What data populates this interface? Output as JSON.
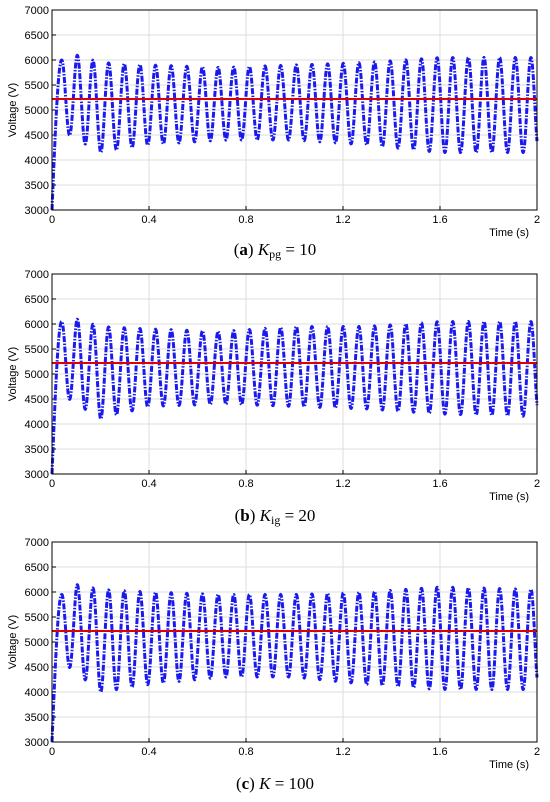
{
  "chart_data": [
    {
      "type": "line",
      "panel_label": "a",
      "caption_symbol": "K",
      "caption_sub": "pg",
      "caption_value": " = 10",
      "xlabel": "Time (s)",
      "ylabel": "Voltage (V)",
      "xlim": [
        0,
        2
      ],
      "ylim": [
        3000,
        7000
      ],
      "xticks": [
        "0",
        "0.4",
        "0.8",
        "1.2",
        "1.6",
        "2"
      ],
      "yticks": [
        "3000",
        "3500",
        "4000",
        "4500",
        "5000",
        "5500",
        "6000",
        "6500",
        "7000"
      ],
      "grid": true,
      "series": [
        {
          "color": "#1a1aee",
          "style": "dash-dot",
          "waveform": {
            "start_value": 3000,
            "rise_end_time": 0.04,
            "period_s": 0.0645,
            "max_points": [
              [
                0.04,
                6000
              ],
              [
                0.1,
                6100
              ],
              [
                0.2,
                5950
              ],
              [
                0.4,
                5900
              ],
              [
                0.7,
                5850
              ],
              [
                1.0,
                5900
              ],
              [
                1.3,
                5950
              ],
              [
                1.6,
                6050
              ],
              [
                2.0,
                6050
              ]
            ],
            "min_points": [
              [
                0.07,
                4500
              ],
              [
                0.2,
                4150
              ],
              [
                0.4,
                4300
              ],
              [
                0.7,
                4400
              ],
              [
                1.0,
                4400
              ],
              [
                1.3,
                4300
              ],
              [
                1.6,
                4150
              ],
              [
                2.0,
                4150
              ]
            ]
          }
        },
        {
          "color": "#e00000",
          "style": "solid",
          "constant": 5220
        }
      ]
    },
    {
      "type": "line",
      "panel_label": "b",
      "caption_symbol": "K",
      "caption_sub": "ig",
      "caption_value": " = 20",
      "xlabel": "Time (s)",
      "ylabel": "Voltage (V)",
      "xlim": [
        0,
        2
      ],
      "ylim": [
        3000,
        7000
      ],
      "xticks": [
        "0",
        "0.4",
        "0.8",
        "1.2",
        "1.6",
        "2"
      ],
      "yticks": [
        "3000",
        "3500",
        "4000",
        "4500",
        "5000",
        "5500",
        "6000",
        "6500",
        "7000"
      ],
      "grid": true,
      "series": [
        {
          "color": "#1a1aee",
          "style": "dash-dot",
          "waveform": {
            "start_value": 3000,
            "rise_end_time": 0.04,
            "period_s": 0.0645,
            "max_points": [
              [
                0.04,
                6050
              ],
              [
                0.1,
                6100
              ],
              [
                0.2,
                5950
              ],
              [
                0.4,
                5900
              ],
              [
                0.7,
                5850
              ],
              [
                1.0,
                5950
              ],
              [
                1.3,
                5950
              ],
              [
                1.6,
                6050
              ],
              [
                2.0,
                6050
              ]
            ],
            "min_points": [
              [
                0.07,
                4500
              ],
              [
                0.2,
                4100
              ],
              [
                0.4,
                4350
              ],
              [
                0.7,
                4400
              ],
              [
                1.0,
                4350
              ],
              [
                1.3,
                4300
              ],
              [
                1.6,
                4200
              ],
              [
                2.0,
                4150
              ]
            ]
          }
        },
        {
          "color": "#e00000",
          "style": "solid",
          "constant": 5220
        }
      ]
    },
    {
      "type": "line",
      "panel_label": "c",
      "caption_symbol": "K",
      "caption_sub": "",
      "caption_value": " = 100",
      "xlabel": "Time (s)",
      "ylabel": "Voltage (V)",
      "xlim": [
        0,
        2
      ],
      "ylim": [
        3000,
        7000
      ],
      "xticks": [
        "0",
        "0.4",
        "0.8",
        "1.2",
        "1.6",
        "2"
      ],
      "yticks": [
        "3000",
        "3500",
        "4000",
        "4500",
        "5000",
        "5500",
        "6000",
        "6500",
        "7000"
      ],
      "grid": true,
      "series": [
        {
          "color": "#1a1aee",
          "style": "dash-dot",
          "waveform": {
            "start_value": 3000,
            "rise_end_time": 0.04,
            "period_s": 0.0645,
            "max_points": [
              [
                0.04,
                5950
              ],
              [
                0.1,
                6150
              ],
              [
                0.2,
                6050
              ],
              [
                0.4,
                6000
              ],
              [
                0.7,
                5950
              ],
              [
                1.0,
                5950
              ],
              [
                1.3,
                6000
              ],
              [
                1.6,
                6100
              ],
              [
                2.0,
                6050
              ]
            ],
            "min_points": [
              [
                0.07,
                4500
              ],
              [
                0.2,
                4000
              ],
              [
                0.4,
                4150
              ],
              [
                0.7,
                4300
              ],
              [
                1.0,
                4300
              ],
              [
                1.3,
                4150
              ],
              [
                1.6,
                4050
              ],
              [
                2.0,
                4050
              ]
            ]
          }
        },
        {
          "color": "#e00000",
          "style": "solid",
          "constant": 5220
        }
      ]
    }
  ]
}
